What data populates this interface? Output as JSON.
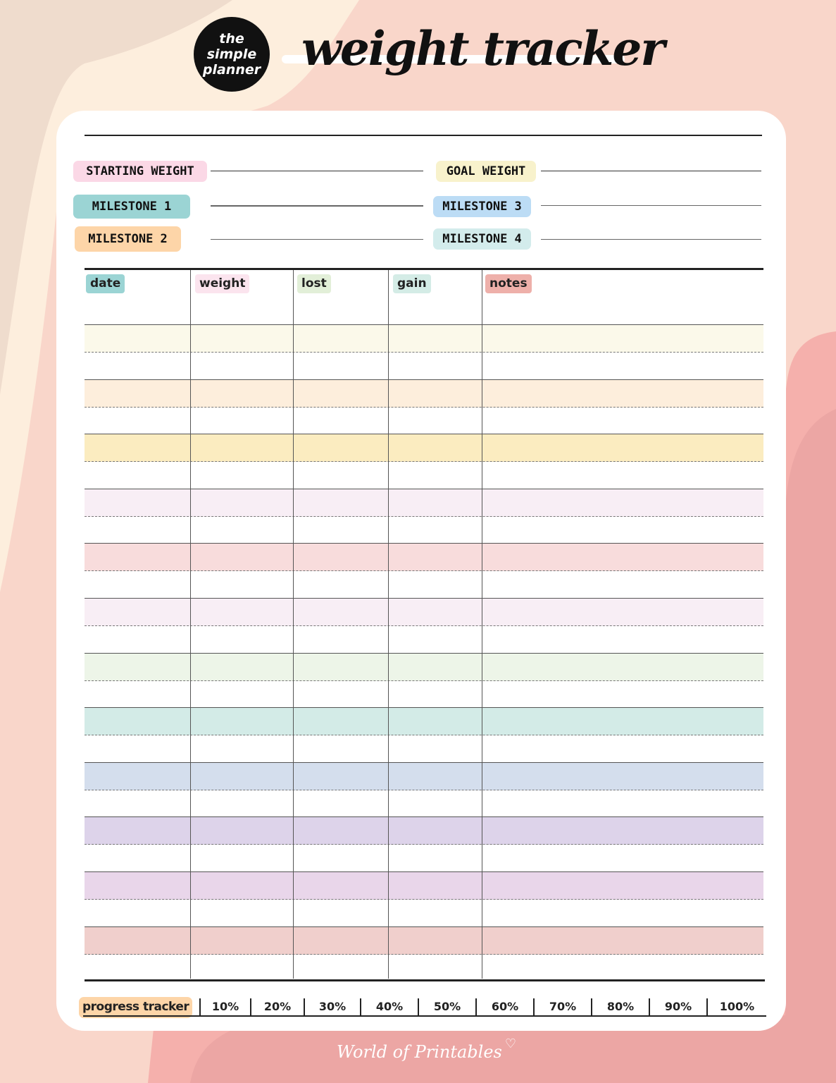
{
  "header": {
    "logo_text": "the simple planner",
    "title": "weight tracker"
  },
  "fields": {
    "starting_weight": "STARTING WEIGHT",
    "goal_weight": "GOAL WEIGHT",
    "milestone_1": "MILESTONE 1",
    "milestone_2": "MILESTONE 2",
    "milestone_3": "MILESTONE 3",
    "milestone_4": "MILESTONE 4"
  },
  "table": {
    "columns": [
      "date",
      "weight",
      "lost",
      "gain",
      "notes"
    ],
    "column_colors": [
      "#9bd4d4",
      "#fbe4ee",
      "#e2efd8",
      "#d4ece6",
      "#eeb0aa"
    ],
    "row_colors": [
      "#fbf9ea",
      "#fdeedc",
      "#fbecc0",
      "#f8eef5",
      "#f8dcdc",
      "#f8eef5",
      "#edf5e8",
      "#d3ebe7",
      "#d4deed",
      "#ddd3ea",
      "#e9d6ea",
      "#f0cfcc"
    ]
  },
  "progress": {
    "label": "progress tracker",
    "steps": [
      "10%",
      "20%",
      "30%",
      "40%",
      "50%",
      "60%",
      "70%",
      "80%",
      "90%",
      "100%"
    ]
  },
  "footer": {
    "brand": "World of Printables"
  },
  "colors": {
    "background": "#f9d6ca",
    "accent_pink": "#eca6a4",
    "beige": "#f0dfd0"
  }
}
